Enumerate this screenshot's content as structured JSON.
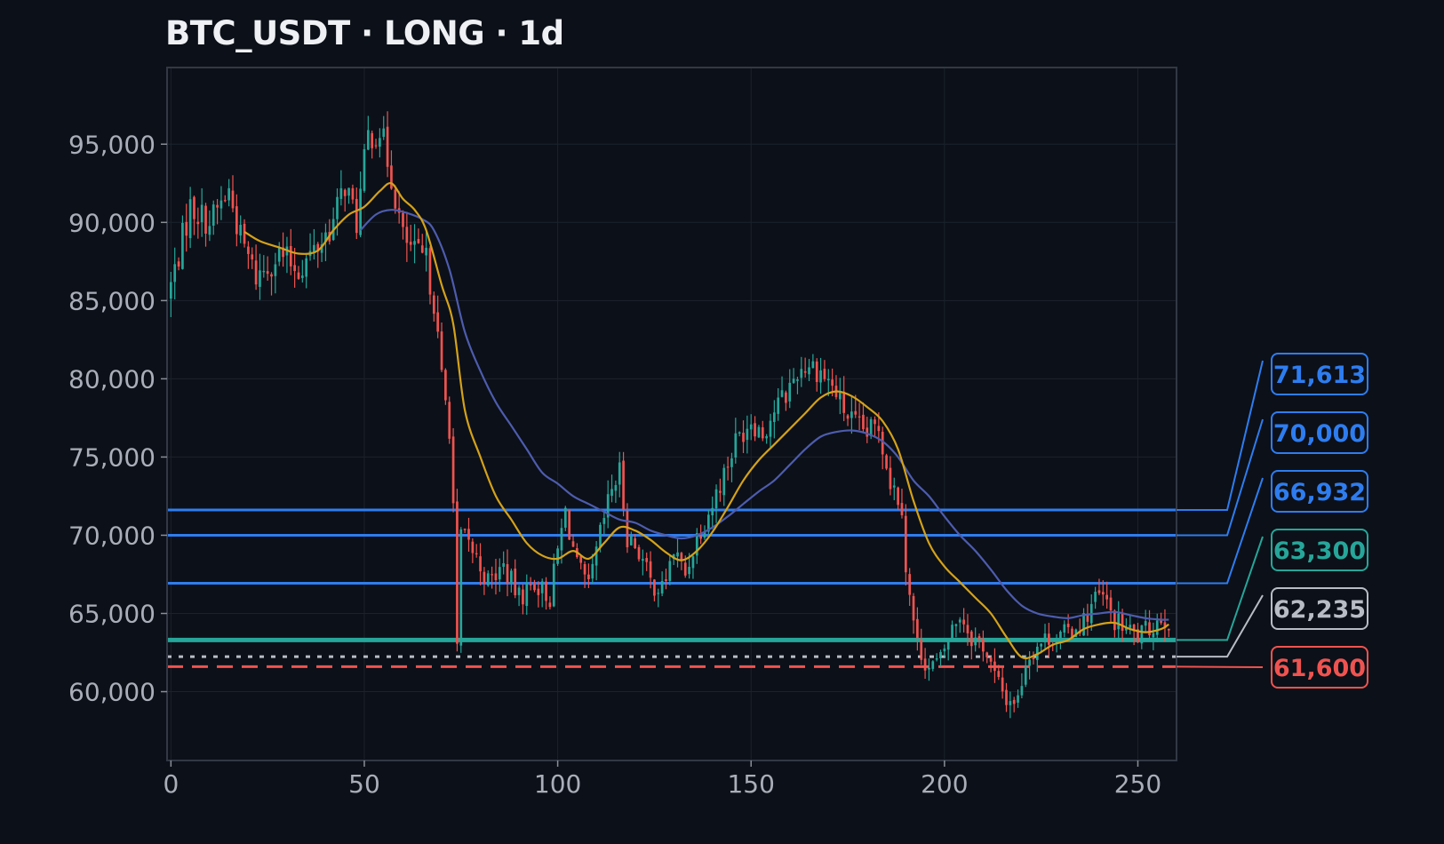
{
  "chart_data": {
    "type": "candlestick",
    "title": "BTC_USDT · LONG · 1d",
    "xlabel": "",
    "ylabel": "",
    "xlim": [
      -1,
      260
    ],
    "ylim": [
      55600,
      99900
    ],
    "x_ticks": [
      0,
      50,
      100,
      150,
      200,
      250
    ],
    "x_tick_labels": [
      "0",
      "50",
      "100",
      "150",
      "200",
      "250"
    ],
    "y_ticks": [
      60000,
      65000,
      70000,
      75000,
      80000,
      85000,
      90000,
      95000
    ],
    "y_tick_labels": [
      "60,000",
      "65,000",
      "70,000",
      "75,000",
      "80,000",
      "85,000",
      "90,000",
      "95,000"
    ],
    "grid": true,
    "colors": {
      "background": "#0c1018",
      "up": "#26a69a",
      "down": "#ef5350",
      "grid": "#1c222c",
      "frame": "#323844",
      "fast_ma": "#d4a21a",
      "slow_ma": "#4d5cae"
    },
    "close_anchors": [
      [
        0,
        86000
      ],
      [
        5,
        91000
      ],
      [
        10,
        90000
      ],
      [
        15,
        92000
      ],
      [
        18,
        89000
      ],
      [
        22,
        86500
      ],
      [
        28,
        88000
      ],
      [
        33,
        87000
      ],
      [
        38,
        88500
      ],
      [
        42,
        90000
      ],
      [
        45,
        92500
      ],
      [
        48,
        90000
      ],
      [
        51,
        95500
      ],
      [
        54,
        96000
      ],
      [
        57,
        93000
      ],
      [
        60,
        89000
      ],
      [
        63,
        88000
      ],
      [
        66,
        87500
      ],
      [
        68,
        85000
      ],
      [
        70,
        80000
      ],
      [
        72,
        77000
      ],
      [
        73,
        72000
      ],
      [
        74,
        62500
      ],
      [
        75,
        70000
      ],
      [
        78,
        69000
      ],
      [
        82,
        67000
      ],
      [
        86,
        68000
      ],
      [
        90,
        66000
      ],
      [
        94,
        67000
      ],
      [
        98,
        66000
      ],
      [
        100,
        69000
      ],
      [
        102,
        71500
      ],
      [
        105,
        68000
      ],
      [
        108,
        66500
      ],
      [
        111,
        70000
      ],
      [
        114,
        73000
      ],
      [
        116,
        74000
      ],
      [
        118,
        70000
      ],
      [
        121,
        69000
      ],
      [
        124,
        67000
      ],
      [
        127,
        66500
      ],
      [
        130,
        69000
      ],
      [
        133,
        67500
      ],
      [
        136,
        70000
      ],
      [
        140,
        72000
      ],
      [
        143,
        74000
      ],
      [
        146,
        76000
      ],
      [
        150,
        77500
      ],
      [
        153,
        76500
      ],
      [
        156,
        78000
      ],
      [
        159,
        79000
      ],
      [
        162,
        80500
      ],
      [
        165,
        81000
      ],
      [
        168,
        80500
      ],
      [
        171,
        79500
      ],
      [
        174,
        78000
      ],
      [
        177,
        77000
      ],
      [
        180,
        76500
      ],
      [
        183,
        77000
      ],
      [
        186,
        73500
      ],
      [
        189,
        72000
      ],
      [
        190,
        68000
      ],
      [
        191,
        66000
      ],
      [
        193,
        63000
      ],
      [
        196,
        61500
      ],
      [
        199,
        62000
      ],
      [
        201,
        63500
      ],
      [
        204,
        65000
      ],
      [
        207,
        63500
      ],
      [
        210,
        63000
      ],
      [
        213,
        61000
      ],
      [
        216,
        59500
      ],
      [
        219,
        59500
      ],
      [
        221,
        62000
      ],
      [
        224,
        63000
      ],
      [
        227,
        63500
      ],
      [
        230,
        63500
      ],
      [
        233,
        64000
      ],
      [
        236,
        64500
      ],
      [
        239,
        66000
      ],
      [
        241,
        66000
      ],
      [
        244,
        64500
      ],
      [
        247,
        64000
      ],
      [
        250,
        63500
      ],
      [
        253,
        64000
      ],
      [
        256,
        64800
      ],
      [
        258,
        64500
      ]
    ],
    "fast_ma": {
      "period": 10,
      "points": [
        [
          19,
          89400
        ],
        [
          23,
          88800
        ],
        [
          28,
          88400
        ],
        [
          33,
          88000
        ],
        [
          38,
          88200
        ],
        [
          42,
          89500
        ],
        [
          46,
          90500
        ],
        [
          50,
          91000
        ],
        [
          54,
          92000
        ],
        [
          57,
          92500
        ],
        [
          60,
          91500
        ],
        [
          63,
          90800
        ],
        [
          66,
          89500
        ],
        [
          70,
          86000
        ],
        [
          73,
          83500
        ],
        [
          76,
          78000
        ],
        [
          80,
          75000
        ],
        [
          84,
          72500
        ],
        [
          88,
          71000
        ],
        [
          92,
          69500
        ],
        [
          96,
          68700
        ],
        [
          100,
          68500
        ],
        [
          104,
          69000
        ],
        [
          108,
          68500
        ],
        [
          112,
          69500
        ],
        [
          116,
          70500
        ],
        [
          120,
          70300
        ],
        [
          124,
          69700
        ],
        [
          128,
          68900
        ],
        [
          132,
          68400
        ],
        [
          136,
          69000
        ],
        [
          140,
          70200
        ],
        [
          144,
          71800
        ],
        [
          148,
          73500
        ],
        [
          152,
          74800
        ],
        [
          156,
          75800
        ],
        [
          160,
          76800
        ],
        [
          164,
          77800
        ],
        [
          168,
          78800
        ],
        [
          172,
          79200
        ],
        [
          176,
          78900
        ],
        [
          180,
          78200
        ],
        [
          184,
          77300
        ],
        [
          188,
          75500
        ],
        [
          192,
          72200
        ],
        [
          196,
          69500
        ],
        [
          200,
          68000
        ],
        [
          204,
          67000
        ],
        [
          208,
          66000
        ],
        [
          212,
          65000
        ],
        [
          216,
          63500
        ],
        [
          220,
          62200
        ],
        [
          224,
          62400
        ],
        [
          228,
          63000
        ],
        [
          232,
          63300
        ],
        [
          236,
          64000
        ],
        [
          240,
          64300
        ],
        [
          244,
          64400
        ],
        [
          248,
          64000
        ],
        [
          252,
          63800
        ],
        [
          256,
          64000
        ],
        [
          258,
          64300
        ]
      ]
    },
    "slow_ma": {
      "period": 20,
      "points": [
        [
          49,
          89500
        ],
        [
          53,
          90500
        ],
        [
          57,
          90800
        ],
        [
          61,
          90600
        ],
        [
          65,
          90200
        ],
        [
          68,
          89500
        ],
        [
          72,
          87000
        ],
        [
          76,
          83000
        ],
        [
          80,
          80500
        ],
        [
          84,
          78500
        ],
        [
          88,
          77000
        ],
        [
          92,
          75500
        ],
        [
          96,
          74000
        ],
        [
          100,
          73300
        ],
        [
          104,
          72500
        ],
        [
          108,
          72000
        ],
        [
          112,
          71500
        ],
        [
          116,
          71000
        ],
        [
          120,
          70800
        ],
        [
          124,
          70300
        ],
        [
          128,
          70000
        ],
        [
          132,
          69800
        ],
        [
          136,
          70000
        ],
        [
          140,
          70500
        ],
        [
          144,
          71200
        ],
        [
          148,
          72000
        ],
        [
          152,
          72800
        ],
        [
          156,
          73500
        ],
        [
          160,
          74500
        ],
        [
          164,
          75500
        ],
        [
          168,
          76300
        ],
        [
          172,
          76600
        ],
        [
          176,
          76700
        ],
        [
          180,
          76500
        ],
        [
          184,
          76000
        ],
        [
          188,
          75000
        ],
        [
          192,
          73500
        ],
        [
          196,
          72500
        ],
        [
          200,
          71200
        ],
        [
          204,
          70000
        ],
        [
          208,
          69000
        ],
        [
          212,
          67800
        ],
        [
          216,
          66500
        ],
        [
          220,
          65500
        ],
        [
          224,
          65000
        ],
        [
          228,
          64800
        ],
        [
          232,
          64700
        ],
        [
          236,
          64900
        ],
        [
          240,
          65000
        ],
        [
          244,
          65100
        ],
        [
          248,
          64900
        ],
        [
          252,
          64700
        ],
        [
          256,
          64600
        ],
        [
          258,
          64600
        ]
      ]
    },
    "levels": [
      {
        "value": 71613,
        "label": "71,613",
        "color": "#2e7df0",
        "style": "solid",
        "width": 3
      },
      {
        "value": 70000,
        "label": "70,000",
        "color": "#2e7df0",
        "style": "solid",
        "width": 3
      },
      {
        "value": 66932,
        "label": "66,932",
        "color": "#2e7df0",
        "style": "solid",
        "width": 3
      },
      {
        "value": 63300,
        "label": "63,300",
        "color": "#26a69a",
        "style": "solid",
        "width": 5
      },
      {
        "value": 62235,
        "label": "62,235",
        "color": "#b8bcc4",
        "style": "dotted",
        "width": 3
      },
      {
        "value": 61600,
        "label": "61,600",
        "color": "#ef5350",
        "style": "dashed",
        "width": 3
      }
    ]
  }
}
